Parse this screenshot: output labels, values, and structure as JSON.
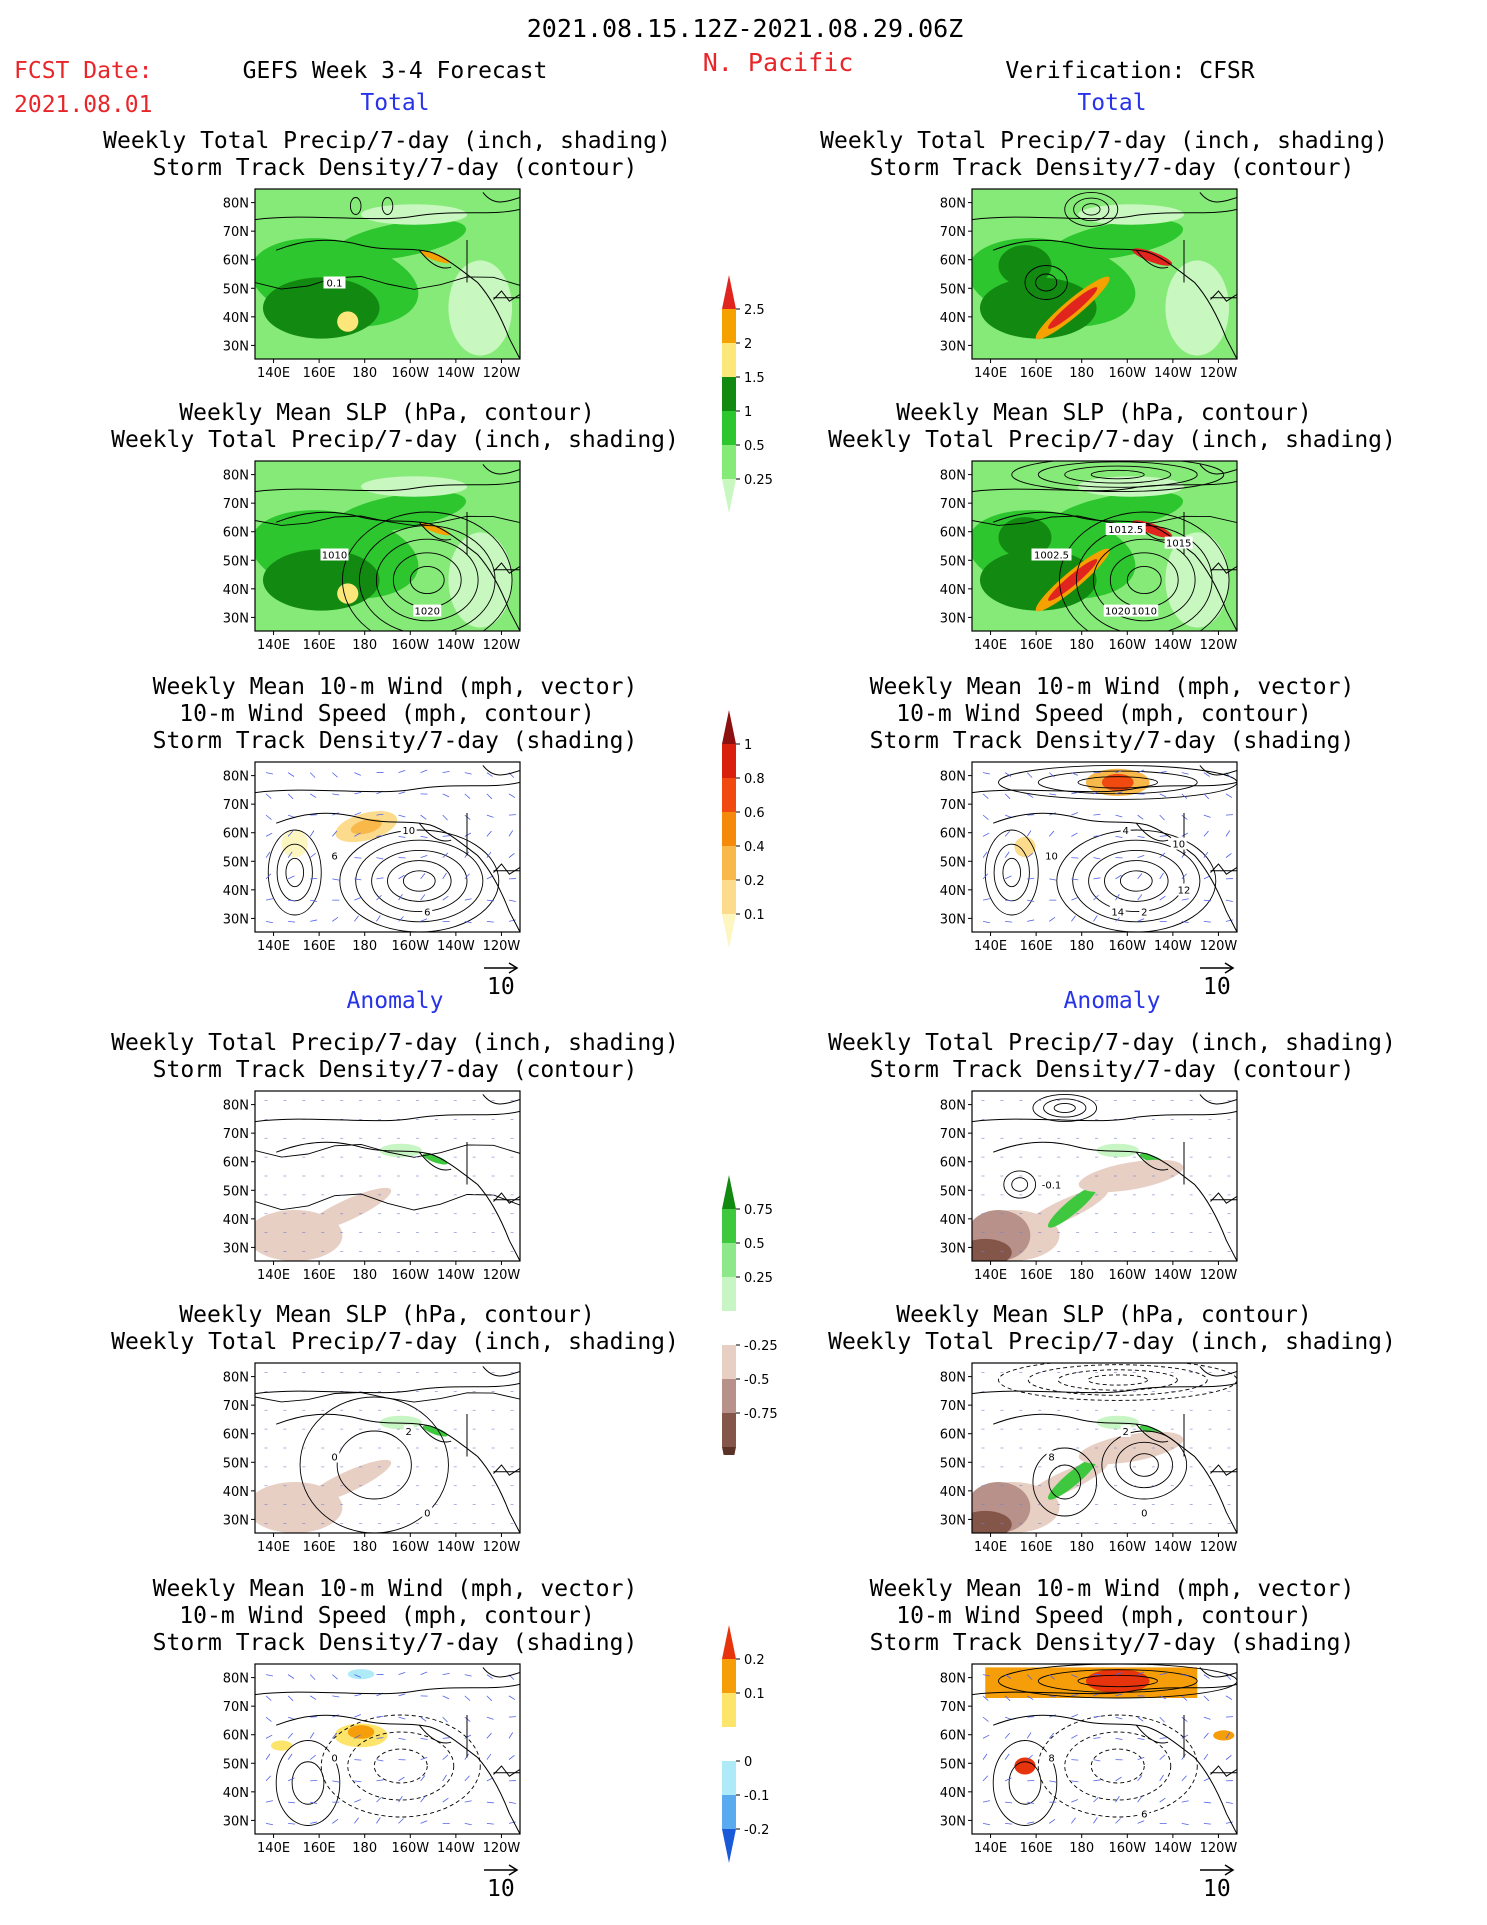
{
  "header": {
    "date_range": "2021.08.15.12Z-2021.08.29.06Z",
    "region": "N. Pacific",
    "fcst_label": "FCST Date:",
    "fcst_date": "2021.08.01",
    "left_model": "GEFS Week 3-4 Forecast",
    "right_model": "Verification: CFSR"
  },
  "sections": {
    "total": "Total",
    "anomaly": "Anomaly"
  },
  "titles": {
    "precip_storm": [
      "Weekly Total Precip/7-day (inch, shading)",
      "Storm Track Density/7-day (contour)"
    ],
    "slp_precip": [
      "Weekly Mean SLP (hPa, contour)",
      "Weekly Total Precip/7-day (inch, shading)"
    ],
    "wind_storm": [
      "Weekly Mean 10-m Wind (mph, vector)",
      "10-m Wind Speed (mph, contour)",
      "Storm Track Density/7-day (shading)"
    ]
  },
  "axes": {
    "lat": [
      "80N",
      "70N",
      "60N",
      "50N",
      "40N",
      "30N"
    ],
    "lon": [
      "140E",
      "160E",
      "180",
      "160W",
      "140W",
      "120W"
    ]
  },
  "vector_ref": "10",
  "colorbars": {
    "precip_total": {
      "labels": [
        "2.5",
        "2",
        "1.5",
        "1",
        "0.5",
        "0.25"
      ],
      "colors": [
        "#e0241e",
        "#f5a200",
        "#fde67a",
        "#128a12",
        "#2ec62e",
        "#86ea78",
        "#c8f8c0"
      ]
    },
    "storm_total": {
      "labels": [
        "1",
        "0.8",
        "0.6",
        "0.4",
        "0.2",
        "0.1"
      ],
      "colors": [
        "#8c1010",
        "#d8200c",
        "#f04a10",
        "#f58a0a",
        "#f8b84a",
        "#fcdc8c",
        "#fef6c0"
      ]
    },
    "precip_anom": {
      "labels": [
        "0.75",
        "0.5",
        "0.25",
        "-0.25",
        "-0.5",
        "-0.75"
      ],
      "colors": [
        "#128a12",
        "#3ec83e",
        "#8ce888",
        "#c8f5c4",
        "#ffffff",
        "#e8cfc4",
        "#b8928a",
        "#84564a",
        "#5a3228"
      ]
    },
    "storm_anom": {
      "labels": [
        "0.2",
        "0.1",
        "0",
        "-0.1",
        "-0.2"
      ],
      "colors": [
        "#e8340c",
        "#f59e0a",
        "#fde46a",
        "#ffffff",
        "#aeeaf8",
        "#5aaaf0",
        "#1a5ad8"
      ]
    }
  },
  "map_labels": {
    "l1": [
      "0.1"
    ],
    "l2": [
      "1010",
      "1020"
    ],
    "l3": [
      "6",
      "6",
      "10"
    ],
    "r2": [
      "1002.5",
      "1010",
      "1012.5",
      "1015",
      "1020"
    ],
    "r3": [
      "10",
      "2",
      "4",
      "10",
      "14",
      "12"
    ],
    "ra1": [
      "-0.1"
    ],
    "la2": [
      "0",
      "0",
      "2"
    ],
    "ra2": [
      "8",
      "0",
      "2"
    ],
    "la3": [
      "0"
    ],
    "ra3": [
      "8",
      "6"
    ]
  }
}
